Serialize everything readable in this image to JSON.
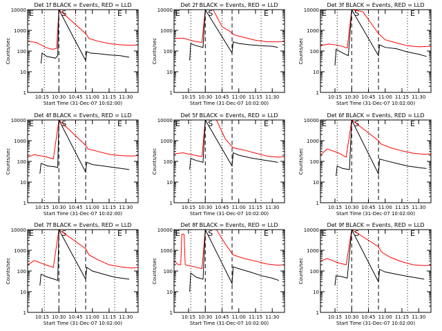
{
  "chart_data": [
    {
      "type": "line",
      "title": "Det 1f BLACK = Events, RED = LLD",
      "xlabel": "Start Time (31-Dec-07 10:02:00)",
      "ylabel": "Counts/sec",
      "yscale": "log",
      "ylim": [
        1,
        10000
      ],
      "xlim": [
        "10:02",
        "11:41"
      ],
      "x_ticks": [
        "10:15",
        "10:30",
        "10:45",
        "11:00",
        "11:15",
        "11:30"
      ],
      "y_ticks": [
        "1",
        "10",
        "100",
        "1000",
        "10000"
      ],
      "markers": [
        {
          "label": "S",
          "time": "10:30",
          "style": "dashed"
        },
        {
          "label": "",
          "time": "10:54",
          "style": "dashed"
        },
        {
          "label": "E",
          "time": "11:20",
          "style": "dotted"
        }
      ],
      "dotted_lines": [
        "10:17",
        "10:45",
        "11:20"
      ],
      "series": [
        {
          "color": "#ff0000",
          "x": [
            "10:02",
            "10:10",
            "10:18",
            "10:24",
            "10:28",
            "10:30",
            "10:54",
            "10:57",
            "11:05",
            "11:15",
            "11:25",
            "11:35",
            "11:41"
          ],
          "y": [
            300,
            260,
            150,
            120,
            135,
            10000,
            700,
            400,
            300,
            230,
            200,
            190,
            200
          ]
        },
        {
          "color": "#000000",
          "x": [
            "10:14",
            "10:15",
            "10:19",
            "10:23",
            "10:27",
            "10:29",
            "10:30",
            "10:54",
            "10:55",
            "10:58",
            "11:05",
            "11:15",
            "11:25",
            "11:33"
          ],
          "y": [
            25,
            80,
            55,
            50,
            45,
            60,
            10000,
            35,
            95,
            80,
            75,
            65,
            60,
            50
          ]
        }
      ]
    },
    {
      "type": "line",
      "title": "Det 2f BLACK = Events, RED = LLD",
      "xlabel": "Start Time (31-Dec-07 10:02:00)",
      "ylabel": "Counts/sec",
      "yscale": "log",
      "ylim": [
        1,
        10000
      ],
      "xlim": [
        "10:02",
        "11:41"
      ],
      "x_ticks": [
        "10:15",
        "10:30",
        "10:45",
        "11:00",
        "11:15",
        "11:30"
      ],
      "y_ticks": [
        "1",
        "10",
        "100",
        "1000",
        "10000"
      ],
      "markers": [
        {
          "label": "S",
          "time": "10:30",
          "style": "dashed"
        },
        {
          "label": "",
          "time": "10:54",
          "style": "dashed"
        },
        {
          "label": "E",
          "time": "11:20",
          "style": "dotted"
        }
      ],
      "dotted_lines": [
        "10:17",
        "10:45",
        "11:20"
      ],
      "series": [
        {
          "color": "#ff0000",
          "x": [
            "10:02",
            "10:10",
            "10:20",
            "10:27",
            "10:30",
            "10:37",
            "10:45",
            "10:52",
            "10:56",
            "11:05",
            "11:15",
            "11:25",
            "11:35",
            "11:41"
          ],
          "y": [
            400,
            420,
            300,
            260,
            10000,
            10000,
            1500,
            900,
            600,
            450,
            330,
            280,
            280,
            290
          ]
        },
        {
          "color": "#000000",
          "x": [
            "10:16",
            "10:17",
            "10:22",
            "10:28",
            "10:30",
            "10:54",
            "10:55",
            "11:00",
            "11:10",
            "11:20",
            "11:30",
            "11:35"
          ],
          "y": [
            35,
            230,
            180,
            150,
            10000,
            80,
            280,
            230,
            200,
            180,
            170,
            150
          ]
        }
      ]
    },
    {
      "type": "line",
      "title": "Det 3f BLACK = Events, RED = LLD",
      "xlabel": "Start Time (31-Dec-07 10:02:00)",
      "ylabel": "Counts/sec",
      "yscale": "log",
      "ylim": [
        1,
        10000
      ],
      "xlim": [
        "10:02",
        "11:41"
      ],
      "x_ticks": [
        "10:15",
        "10:30",
        "10:45",
        "11:00",
        "11:15",
        "11:30"
      ],
      "y_ticks": [
        "1",
        "10",
        "100",
        "1000",
        "10000"
      ],
      "markers": [
        {
          "label": "S",
          "time": "10:30",
          "style": "dashed"
        },
        {
          "label": "",
          "time": "10:54",
          "style": "dashed"
        },
        {
          "label": "E",
          "time": "11:20",
          "style": "dotted"
        }
      ],
      "dotted_lines": [
        "10:17",
        "10:45",
        "11:20"
      ],
      "series": [
        {
          "color": "#ff0000",
          "x": [
            "10:02",
            "10:10",
            "10:20",
            "10:26",
            "10:30",
            "10:40",
            "10:48",
            "10:54",
            "11:00",
            "11:10",
            "11:20",
            "11:30",
            "11:41"
          ],
          "y": [
            180,
            220,
            180,
            140,
            10000,
            8000,
            2000,
            700,
            350,
            250,
            180,
            160,
            170
          ]
        },
        {
          "color": "#000000",
          "x": [
            "10:15",
            "10:16",
            "10:22",
            "10:27",
            "10:30",
            "10:54",
            "10:55",
            "11:00",
            "11:10",
            "11:20",
            "11:30",
            "11:37"
          ],
          "y": [
            20,
            120,
            80,
            60,
            10000,
            60,
            200,
            150,
            130,
            90,
            70,
            55
          ]
        }
      ]
    },
    {
      "type": "line",
      "title": "Det 4f BLACK = Events, RED = LLD",
      "xlabel": "Start Time (31-Dec-07 10:02:00)",
      "ylabel": "Counts/sec",
      "yscale": "log",
      "ylim": [
        1,
        10000
      ],
      "xlim": [
        "10:02",
        "11:41"
      ],
      "x_ticks": [
        "10:15",
        "10:30",
        "10:45",
        "11:00",
        "11:15",
        "11:30"
      ],
      "y_ticks": [
        "1",
        "10",
        "100",
        "1000",
        "10000"
      ],
      "markers": [
        {
          "label": "S",
          "time": "10:30",
          "style": "dashed"
        },
        {
          "label": "",
          "time": "10:54",
          "style": "dashed"
        },
        {
          "label": "E",
          "time": "11:20",
          "style": "dotted"
        }
      ],
      "dotted_lines": [
        "10:17",
        "10:45",
        "11:20"
      ],
      "series": [
        {
          "color": "#ff0000",
          "x": [
            "10:02",
            "10:08",
            "10:18",
            "10:25",
            "10:30",
            "10:54",
            "10:56",
            "11:05",
            "11:15",
            "11:25",
            "11:35",
            "11:41"
          ],
          "y": [
            160,
            210,
            170,
            130,
            10000,
            600,
            400,
            300,
            220,
            190,
            180,
            190
          ]
        },
        {
          "color": "#000000",
          "x": [
            "10:13",
            "10:14",
            "10:20",
            "10:26",
            "10:29",
            "10:30",
            "10:54",
            "10:55",
            "11:00",
            "11:10",
            "11:20",
            "11:33"
          ],
          "y": [
            25,
            80,
            60,
            55,
            50,
            10000,
            30,
            90,
            70,
            60,
            50,
            40
          ]
        }
      ]
    },
    {
      "type": "line",
      "title": "Det 5f BLACK = Events, RED = LLD",
      "xlabel": "Start Time (31-Dec-07 10:02:00)",
      "ylabel": "Counts/sec",
      "yscale": "log",
      "ylim": [
        1,
        10000
      ],
      "xlim": [
        "10:02",
        "11:41"
      ],
      "x_ticks": [
        "10:15",
        "10:30",
        "10:45",
        "11:00",
        "11:15",
        "11:30"
      ],
      "y_ticks": [
        "1",
        "10",
        "100",
        "1000",
        "10000"
      ],
      "markers": [
        {
          "label": "S",
          "time": "10:30",
          "style": "dashed"
        },
        {
          "label": "",
          "time": "10:54",
          "style": "dashed"
        },
        {
          "label": "E",
          "time": "11:20",
          "style": "dotted"
        }
      ],
      "dotted_lines": [
        "10:17",
        "10:45",
        "11:20"
      ],
      "series": [
        {
          "color": "#ff0000",
          "x": [
            "10:02",
            "10:10",
            "10:20",
            "10:27",
            "10:30",
            "10:40",
            "10:48",
            "10:55",
            "11:05",
            "11:15",
            "11:25",
            "11:35",
            "11:41"
          ],
          "y": [
            230,
            260,
            200,
            170,
            10000,
            10000,
            1200,
            450,
            350,
            250,
            180,
            160,
            170
          ]
        },
        {
          "color": "#000000",
          "x": [
            "10:16",
            "10:17",
            "10:22",
            "10:28",
            "10:30",
            "10:54",
            "10:55",
            "11:00",
            "11:10",
            "11:20",
            "11:30",
            "11:35"
          ],
          "y": [
            40,
            140,
            110,
            90,
            10000,
            60,
            260,
            200,
            150,
            120,
            100,
            90
          ]
        }
      ]
    },
    {
      "type": "line",
      "title": "Det 6f BLACK = Events, RED = LLD",
      "xlabel": "Start Time (31-Dec-07 10:02:00)",
      "ylabel": "Counts/sec",
      "yscale": "log",
      "ylim": [
        1,
        10000
      ],
      "xlim": [
        "10:02",
        "11:41"
      ],
      "x_ticks": [
        "10:15",
        "10:30",
        "10:45",
        "11:00",
        "11:15",
        "11:30"
      ],
      "y_ticks": [
        "1",
        "10",
        "100",
        "1000",
        "10000"
      ],
      "markers": [
        {
          "label": "S",
          "time": "10:30",
          "style": "dashed"
        },
        {
          "label": "",
          "time": "10:54",
          "style": "dashed"
        },
        {
          "label": "E",
          "time": "11:20",
          "style": "dotted"
        }
      ],
      "dotted_lines": [
        "10:17",
        "10:45",
        "11:20"
      ],
      "series": [
        {
          "color": "#ff0000",
          "x": [
            "10:02",
            "10:08",
            "10:18",
            "10:25",
            "10:30",
            "10:54",
            "10:56",
            "11:05",
            "11:15",
            "11:25",
            "11:35",
            "11:41"
          ],
          "y": [
            200,
            400,
            260,
            160,
            10000,
            1000,
            700,
            450,
            320,
            250,
            220,
            230
          ]
        },
        {
          "color": "#000000",
          "x": [
            "10:16",
            "10:17",
            "10:22",
            "10:28",
            "10:30",
            "10:54",
            "10:55",
            "11:00",
            "11:10",
            "11:20",
            "11:30",
            "11:37"
          ],
          "y": [
            20,
            60,
            45,
            40,
            10000,
            25,
            130,
            110,
            80,
            60,
            50,
            45
          ]
        }
      ]
    },
    {
      "type": "line",
      "title": "Det 7f BLACK = Events, RED = LLD",
      "xlabel": "Start Time (31-Dec-07 10:02:00)",
      "ylabel": "Counts/sec",
      "yscale": "log",
      "ylim": [
        1,
        10000
      ],
      "xlim": [
        "10:02",
        "11:41"
      ],
      "x_ticks": [
        "10:15",
        "10:30",
        "10:45",
        "11:00",
        "11:15",
        "11:30"
      ],
      "y_ticks": [
        "1",
        "10",
        "100",
        "1000",
        "10000"
      ],
      "markers": [
        {
          "label": "S",
          "time": "10:30",
          "style": "dashed"
        },
        {
          "label": "",
          "time": "10:54",
          "style": "dashed"
        },
        {
          "label": "E",
          "time": "11:20",
          "style": "dotted"
        }
      ],
      "dotted_lines": [
        "10:17",
        "10:45",
        "11:20"
      ],
      "series": [
        {
          "color": "#ff0000",
          "x": [
            "10:02",
            "10:08",
            "10:18",
            "10:25",
            "10:30",
            "10:54",
            "10:57",
            "11:05",
            "11:15",
            "11:25",
            "11:35",
            "11:41"
          ],
          "y": [
            200,
            320,
            200,
            150,
            10000,
            1200,
            600,
            350,
            200,
            160,
            140,
            150
          ]
        },
        {
          "color": "#000000",
          "x": [
            "10:13",
            "10:14",
            "10:20",
            "10:26",
            "10:29",
            "10:30",
            "10:54",
            "10:55",
            "11:00",
            "11:10",
            "11:20",
            "11:33"
          ],
          "y": [
            20,
            70,
            50,
            40,
            35,
            10000,
            40,
            150,
            100,
            70,
            50,
            40
          ]
        }
      ]
    },
    {
      "type": "line",
      "title": "Det 8f BLACK = Events, RED = LLD",
      "xlabel": "Start Time (31-Dec-07 10:02:00)",
      "ylabel": "Counts/sec",
      "yscale": "log",
      "ylim": [
        1,
        10000
      ],
      "xlim": [
        "10:02",
        "11:41"
      ],
      "x_ticks": [
        "10:15",
        "10:30",
        "10:45",
        "11:00",
        "11:15",
        "11:30"
      ],
      "y_ticks": [
        "1",
        "10",
        "100",
        "1000",
        "10000"
      ],
      "markers": [
        {
          "label": "S",
          "time": "10:30",
          "style": "dashed"
        },
        {
          "label": "",
          "time": "10:54",
          "style": "dashed"
        },
        {
          "label": "E",
          "time": "11:20",
          "style": "dotted"
        }
      ],
      "dotted_lines": [
        "10:17",
        "10:45",
        "11:20"
      ],
      "series": [
        {
          "color": "#ff0000",
          "x": [
            "10:02",
            "10:06",
            "10:08",
            "10:09",
            "10:11",
            "10:12",
            "10:20",
            "10:27",
            "10:30",
            "10:40",
            "10:48",
            "10:55",
            "11:05",
            "11:15",
            "11:25",
            "11:35",
            "11:41"
          ],
          "y": [
            300,
            200,
            200,
            6000,
            6000,
            200,
            160,
            130,
            10000,
            10000,
            2000,
            600,
            400,
            300,
            220,
            190,
            200
          ]
        },
        {
          "color": "#000000",
          "x": [
            "10:16",
            "10:17",
            "10:22",
            "10:28",
            "10:30",
            "10:54",
            "10:55",
            "11:00",
            "11:10",
            "11:20",
            "11:30",
            "11:36"
          ],
          "y": [
            10,
            80,
            50,
            40,
            10000,
            25,
            160,
            130,
            90,
            60,
            45,
            35
          ]
        }
      ]
    },
    {
      "type": "line",
      "title": "Det 9f BLACK = Events, RED = LLD",
      "xlabel": "Start Time (31-Dec-07 10:02:00)",
      "ylabel": "Counts/sec",
      "yscale": "log",
      "ylim": [
        1,
        10000
      ],
      "xlim": [
        "10:02",
        "11:41"
      ],
      "x_ticks": [
        "10:15",
        "10:30",
        "10:45",
        "11:00",
        "11:15",
        "11:30"
      ],
      "y_ticks": [
        "1",
        "10",
        "100",
        "1000",
        "10000"
      ],
      "markers": [
        {
          "label": "S",
          "time": "10:30",
          "style": "dashed"
        },
        {
          "label": "",
          "time": "10:54",
          "style": "dashed"
        },
        {
          "label": "E",
          "time": "11:20",
          "style": "dotted"
        }
      ],
      "dotted_lines": [
        "10:17",
        "10:45",
        "11:20"
      ],
      "series": [
        {
          "color": "#ff0000",
          "x": [
            "10:02",
            "10:08",
            "10:18",
            "10:25",
            "10:30",
            "10:54",
            "10:57",
            "11:05",
            "11:15",
            "11:25",
            "11:35",
            "11:41"
          ],
          "y": [
            300,
            400,
            250,
            200,
            10000,
            1500,
            800,
            450,
            280,
            200,
            180,
            190
          ]
        },
        {
          "color": "#000000",
          "x": [
            "10:15",
            "10:16",
            "10:20",
            "10:26",
            "10:30",
            "10:54",
            "10:55",
            "11:00",
            "11:10",
            "11:20",
            "11:30",
            "11:35"
          ],
          "y": [
            20,
            60,
            55,
            45,
            10000,
            30,
            120,
            90,
            70,
            55,
            45,
            40
          ]
        }
      ]
    }
  ]
}
